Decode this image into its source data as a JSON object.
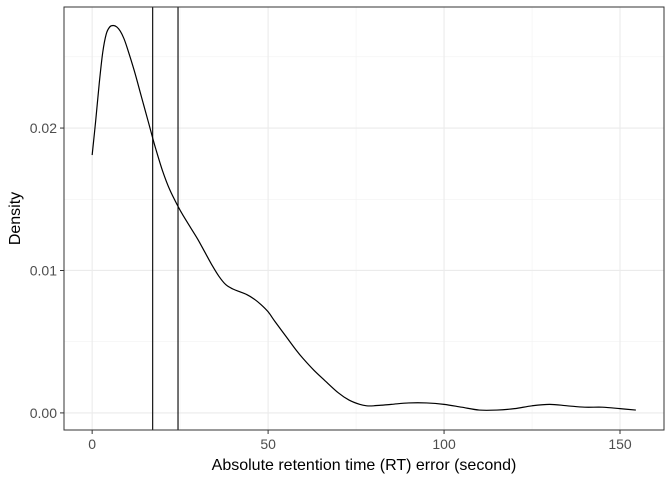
{
  "chart_data": {
    "type": "line",
    "title": "",
    "xlabel": "Absolute retention time (RT) error (second)",
    "ylabel": "Density",
    "xlim": [
      -8,
      162.5
    ],
    "ylim": [
      -0.0012,
      0.0285
    ],
    "grid": true,
    "legend": "none",
    "x_ticks": [
      0,
      50,
      100,
      150
    ],
    "x_tick_labels": [
      "0",
      "50",
      "100",
      "150"
    ],
    "y_ticks": [
      0.0,
      0.01,
      0.02
    ],
    "y_tick_labels": [
      "0.00",
      "0.01",
      "0.02"
    ],
    "vertical_lines": [
      17.2,
      24.4
    ],
    "series": [
      {
        "x": [
          0,
          1,
          2,
          3,
          4,
          5,
          6,
          7,
          8,
          9,
          10,
          12,
          14,
          16,
          17.2,
          18,
          20,
          22,
          24.4,
          26,
          28,
          30,
          32,
          34,
          36,
          38,
          40,
          42,
          44,
          46,
          48,
          50,
          52,
          55,
          58,
          60,
          63,
          66,
          70,
          73,
          76,
          78,
          80,
          85,
          90,
          95,
          100,
          105,
          110,
          115,
          120,
          125,
          130,
          135,
          140,
          145,
          150,
          154.5
        ],
        "y": [
          0.0181,
          0.0205,
          0.0231,
          0.0253,
          0.0266,
          0.0271,
          0.0272,
          0.0271,
          0.0268,
          0.0263,
          0.0256,
          0.024,
          0.0222,
          0.0204,
          0.0193,
          0.0186,
          0.017,
          0.0157,
          0.0145,
          0.0138,
          0.013,
          0.0122,
          0.0113,
          0.0104,
          0.0096,
          0.009,
          0.0087,
          0.0085,
          0.0083,
          0.008,
          0.0076,
          0.0071,
          0.0064,
          0.0054,
          0.0044,
          0.0038,
          0.003,
          0.0023,
          0.0014,
          0.0009,
          0.0006,
          0.0005,
          0.0005,
          0.0006,
          0.0007,
          0.0007,
          0.0006,
          0.0004,
          0.0002,
          0.0002,
          0.0003,
          0.0005,
          0.0006,
          0.0005,
          0.0004,
          0.0004,
          0.0003,
          0.0002
        ]
      }
    ]
  }
}
